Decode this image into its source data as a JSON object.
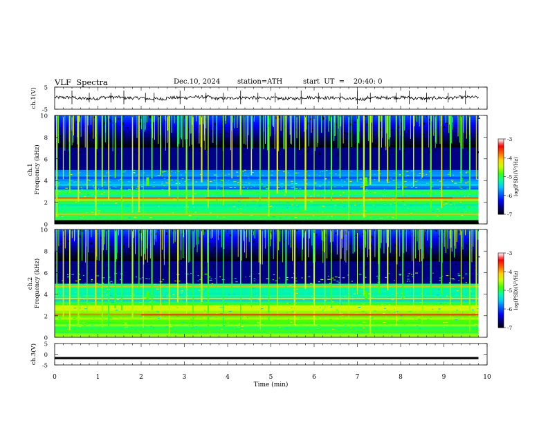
{
  "header": {
    "title": "VLF  Spectra",
    "date": "Dec.10, 2024",
    "station": "station=ATH",
    "start": "start  UT  =    20:40: 0"
  },
  "colors": {
    "colormap": [
      "#000000",
      "#00007a",
      "#0000ff",
      "#0060ff",
      "#00c8ff",
      "#00ffa0",
      "#40ff00",
      "#c8ff00",
      "#ffd000",
      "#ff6000",
      "#ff0000",
      "#ffffff"
    ],
    "trace": "#000000",
    "axis": "#000000"
  },
  "chart_data": [
    {
      "type": "line",
      "panel": "ch1-waveform",
      "ylabel": "ch.1(V)",
      "ylim": [
        -5,
        5
      ],
      "yticks": [
        "5",
        "-5"
      ],
      "xlim": [
        0,
        10
      ],
      "series": [
        {
          "values": [
            0.3,
            -0.2,
            0.4,
            0.1,
            -0.3,
            0.2,
            0.5,
            -0.1,
            0.2,
            0.0,
            -0.2,
            0.3,
            0.1,
            -0.4,
            0.2,
            0.3,
            -0.1,
            0.1,
            0.4,
            -0.2
          ]
        }
      ],
      "spikes_at_min": [
        0.4,
        0.8,
        1.3,
        1.6,
        2.1,
        2.3,
        2.9,
        3.5,
        3.9,
        4.3,
        4.7,
        5.1,
        5.7,
        6.1,
        6.6,
        7.0,
        7.3,
        7.9,
        8.2,
        8.6,
        9.1,
        9.5
      ]
    },
    {
      "type": "heatmap",
      "panel": "ch1-spectrogram",
      "ylabel": "ch.1\nFrequency  (kHz)",
      "ylim": [
        0,
        10
      ],
      "yticks": [
        "0",
        "2",
        "4",
        "6",
        "8",
        "10"
      ],
      "xlim": [
        0,
        9.8
      ],
      "colorbar": {
        "label": "log(PSD)(V²/Hz)",
        "range": [
          -7,
          -3
        ],
        "ticks": [
          "-3",
          "-4",
          "-5",
          "-6",
          "-7"
        ]
      },
      "bands_khz": [
        {
          "f": 0.3,
          "level": -4.8
        },
        {
          "f": 0.9,
          "level": -4.0
        },
        {
          "f": 2.2,
          "level": -4.1
        },
        {
          "f": 2.4,
          "level": -3.7
        },
        {
          "f": 3.1,
          "level": -5.2
        },
        {
          "f": 3.6,
          "level": -5.4
        },
        {
          "f": 4.3,
          "level": -6.0
        }
      ]
    },
    {
      "type": "heatmap",
      "panel": "ch2-spectrogram",
      "ylabel": "ch.2\nFrequency  (kHz)",
      "ylim": [
        0,
        10
      ],
      "yticks": [
        "0",
        "2",
        "4",
        "6",
        "8",
        "10"
      ],
      "xlim": [
        0,
        9.8
      ],
      "colorbar": {
        "label": "log(PSD)(V²/Hz)",
        "range": [
          -7,
          -3
        ],
        "ticks": [
          "-3",
          "-4",
          "-5",
          "-6",
          "-7"
        ]
      },
      "bands_khz": [
        {
          "f": 0.6,
          "level": -4.8
        },
        {
          "f": 1.5,
          "level": -4.8
        },
        {
          "f": 2.1,
          "level": -3.8
        },
        {
          "f": 2.9,
          "level": -4.4
        },
        {
          "f": 3.6,
          "level": -4.2
        },
        {
          "f": 4.7,
          "level": -4.0
        }
      ]
    },
    {
      "type": "line",
      "panel": "ch3-waveform",
      "ylabel": "ch.3(V)",
      "ylim": [
        -5,
        5
      ],
      "yticks": [
        "5",
        "0",
        "-5"
      ],
      "xlim": [
        0,
        10
      ],
      "series": [
        {
          "values": [
            -1.8,
            -1.8,
            -1.8,
            -1.8,
            -1.8,
            -1.8,
            -1.8,
            -1.8,
            -1.8,
            -1.8,
            -1.8,
            -1.8
          ]
        }
      ]
    }
  ],
  "xaxis": {
    "label": "Time  (min)",
    "ticks": [
      "0",
      "1",
      "2",
      "3",
      "4",
      "5",
      "6",
      "7",
      "8",
      "9",
      "10"
    ],
    "range": [
      0,
      10
    ]
  },
  "features": {
    "common_impulses_min": [
      0.05,
      0.2,
      0.35,
      0.55,
      0.75,
      0.95,
      1.1,
      1.25,
      1.4,
      1.55,
      1.8,
      1.95,
      2.05,
      2.25,
      2.45,
      2.65,
      2.85,
      3.05,
      3.2,
      3.4,
      3.55,
      3.75,
      3.9,
      4.1,
      4.3,
      4.55,
      4.75,
      4.95,
      5.15,
      5.35,
      5.55,
      5.8,
      6.0,
      6.25,
      6.4,
      6.6,
      6.8,
      7.0,
      7.15,
      7.3,
      7.5,
      7.7,
      7.9,
      8.05,
      8.3,
      8.5,
      8.7,
      8.95,
      9.15,
      9.4,
      9.6,
      9.75
    ],
    "green_bursts_min": [
      2.15,
      7.2
    ],
    "red_segments": [
      {
        "panel": 0,
        "from_min": 3.5,
        "to_min": 4.5,
        "f": 2.4
      },
      {
        "panel": 0,
        "from_min": 7.9,
        "to_min": 9.2,
        "f": 2.4
      },
      {
        "panel": 1,
        "from_min": 2.0,
        "to_min": 9.8,
        "f": 2.1
      }
    ]
  }
}
